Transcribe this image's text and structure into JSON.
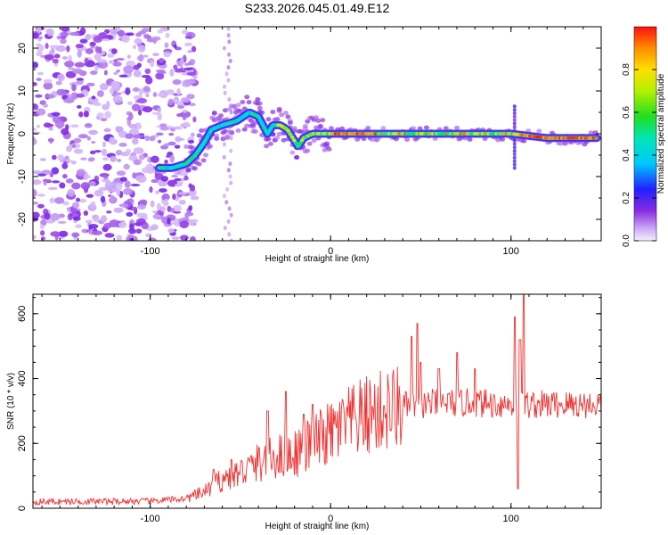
{
  "title": "S233.2026.045.01.49.E12",
  "chart_data": [
    {
      "type": "heatmap",
      "name": "spectrogram",
      "xlabel": "Height of straight line (km)",
      "ylabel": "Frequency (Hz)",
      "xlim": [
        -165,
        150
      ],
      "ylim": [
        -25,
        25
      ],
      "x_ticks": [
        -100,
        0,
        100
      ],
      "y_ticks": [
        -20,
        -10,
        0,
        10,
        20
      ],
      "x_tick_labels": [
        "-100",
        "0",
        "100"
      ],
      "y_tick_labels": [
        "-20",
        "-10",
        "0",
        "10",
        "20"
      ],
      "ridge": [
        [
          -95,
          -8
        ],
        [
          -88,
          -8
        ],
        [
          -80,
          -7
        ],
        [
          -75,
          -5
        ],
        [
          -70,
          -2
        ],
        [
          -66,
          1
        ],
        [
          -60,
          2
        ],
        [
          -52,
          3
        ],
        [
          -45,
          5
        ],
        [
          -40,
          4
        ],
        [
          -35,
          0
        ],
        [
          -32,
          2
        ],
        [
          -28,
          2
        ],
        [
          -24,
          1
        ],
        [
          -21,
          -1
        ],
        [
          -18,
          -3
        ],
        [
          -15,
          -1
        ],
        [
          -10,
          0
        ],
        [
          0,
          0
        ],
        [
          20,
          0
        ],
        [
          40,
          0
        ],
        [
          60,
          0
        ],
        [
          80,
          0
        ],
        [
          100,
          0
        ],
        [
          120,
          -1
        ],
        [
          148,
          -1
        ]
      ],
      "noise_region_km": [
        -165,
        -80
      ],
      "colorbar": {
        "label": "Normalized spectral amplitude",
        "ticks": [
          0.0,
          0.2,
          0.4,
          0.6,
          0.8
        ],
        "tick_labels": [
          "0.0",
          "0.2",
          "0.4",
          "0.6",
          "0.8"
        ],
        "range": [
          0,
          1
        ]
      }
    },
    {
      "type": "line",
      "name": "snr",
      "xlabel": "Height of straight line (km)",
      "ylabel": "SNR (10 * v/v)",
      "xlim": [
        -165,
        150
      ],
      "ylim": [
        0,
        660
      ],
      "x_ticks": [
        -100,
        0,
        100
      ],
      "y_ticks": [
        0,
        200,
        400,
        600
      ],
      "x_tick_labels": [
        "-100",
        "0",
        "100"
      ],
      "y_tick_labels": [
        "0",
        "200",
        "400",
        "600"
      ],
      "series_color": "#ee3333",
      "envelope": [
        [
          -165,
          20
        ],
        [
          -100,
          22
        ],
        [
          -80,
          30
        ],
        [
          -70,
          50
        ],
        [
          -60,
          90
        ],
        [
          -50,
          110
        ],
        [
          -40,
          140
        ],
        [
          -30,
          160
        ],
        [
          -20,
          170
        ],
        [
          -10,
          200
        ],
        [
          0,
          230
        ],
        [
          10,
          260
        ],
        [
          20,
          285
        ],
        [
          30,
          300
        ],
        [
          40,
          315
        ],
        [
          50,
          320
        ],
        [
          60,
          325
        ],
        [
          80,
          325
        ],
        [
          100,
          320
        ],
        [
          120,
          320
        ],
        [
          150,
          320
        ]
      ],
      "peaks": [
        [
          -65,
          120
        ],
        [
          -55,
          150
        ],
        [
          -35,
          300
        ],
        [
          -25,
          360
        ],
        [
          -15,
          290
        ],
        [
          -10,
          320
        ],
        [
          45,
          530
        ],
        [
          48,
          570
        ],
        [
          50,
          450
        ],
        [
          60,
          430
        ],
        [
          70,
          480
        ],
        [
          80,
          430
        ],
        [
          102,
          590
        ],
        [
          105,
          520
        ],
        [
          107,
          660
        ],
        [
          104,
          60
        ]
      ]
    }
  ],
  "colors": {
    "accent_trace": "#ee3333",
    "noise_purple": "#7a20e0"
  }
}
